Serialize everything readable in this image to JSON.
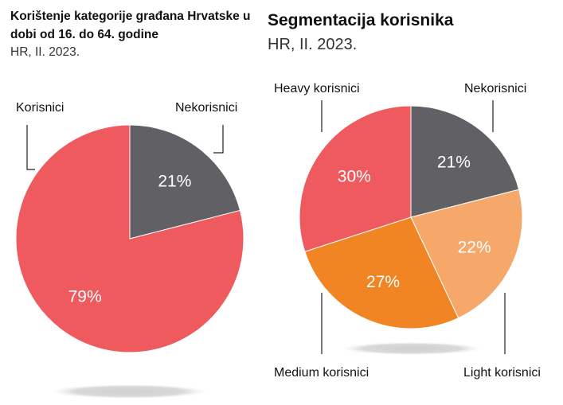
{
  "left_title": "Korištenje kategorije građana Hrvatske u dobi od 16. do 64. godine",
  "left_subtitle": "HR, II. 2023.",
  "right_title": "Segmentacija korisnika",
  "right_subtitle": "HR, II. 2023.",
  "colors": {
    "dark_gray": "#616064",
    "red": "#ef5a5f",
    "light_orange": "#f6a76a",
    "orange": "#f18423"
  },
  "chart_data": [
    {
      "type": "pie",
      "title": "Korištenje kategorije građana Hrvatske u dobi od 16. do 64. godine",
      "subtitle": "HR, II. 2023.",
      "labels": [
        "Nekorisnici",
        "Korisnici"
      ],
      "values": [
        21,
        79
      ],
      "value_labels": [
        "21%",
        "79%"
      ],
      "colors": [
        "#616064",
        "#ef5a5f"
      ]
    },
    {
      "type": "pie",
      "title": "Segmentacija korisnika",
      "subtitle": "HR, II. 2023.",
      "labels": [
        "Nekorisnici",
        "Light korisnici",
        "Medium korisnici",
        "Heavy korisnici"
      ],
      "values": [
        21,
        22,
        27,
        30
      ],
      "value_labels": [
        "21%",
        "22%",
        "27%",
        "30%"
      ],
      "colors": [
        "#616064",
        "#f6a76a",
        "#f18423",
        "#ef5a5f"
      ]
    }
  ]
}
